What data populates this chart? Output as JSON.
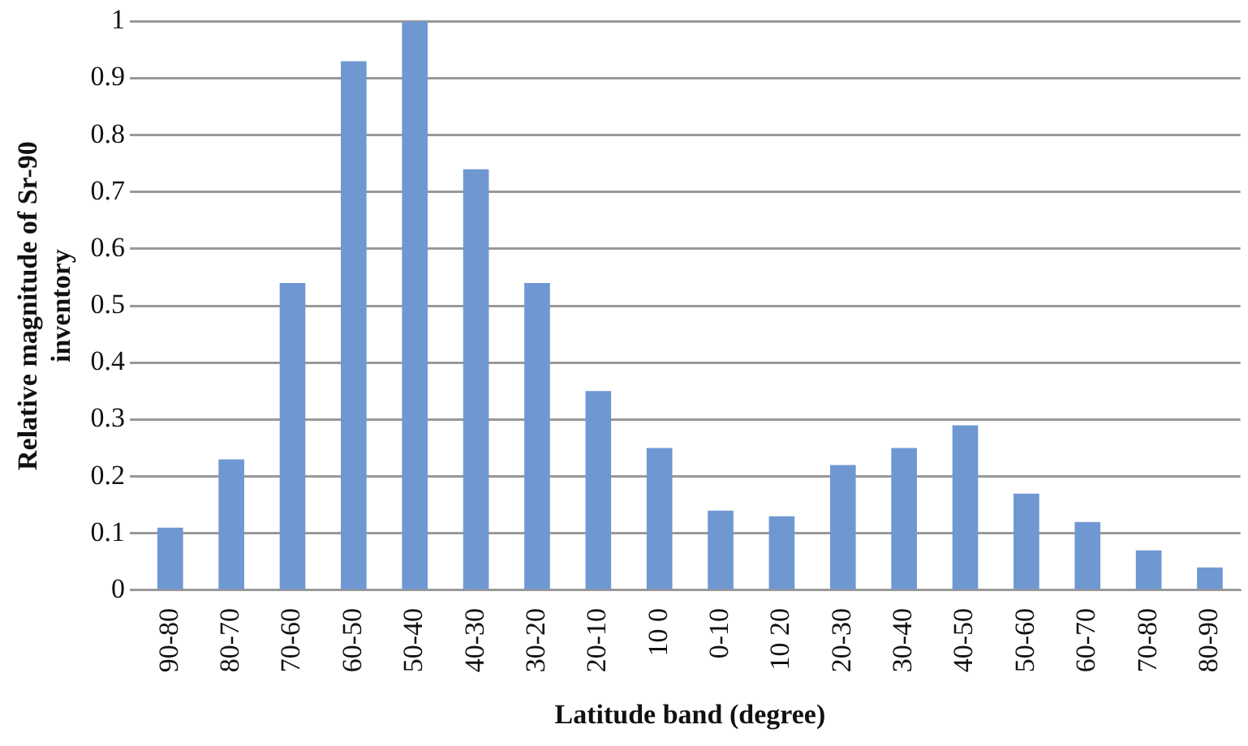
{
  "chart_data": {
    "type": "bar",
    "xlabel": "Latitude band (degree)",
    "ylabel": "Relative magnitude of Sr-90 inventory",
    "categories": [
      "90-80",
      "80-70",
      "70-60",
      "60-50",
      "50-40",
      "40-30",
      "30-20",
      "20-10",
      "10 0",
      "0-10",
      "10 20",
      "20-30",
      "30-40",
      "40-50",
      "50-60",
      "60-70",
      "70-80",
      "80-90"
    ],
    "values": [
      0.11,
      0.23,
      0.54,
      0.93,
      1,
      0.74,
      0.54,
      0.35,
      0.25,
      0.14,
      0.13,
      0.22,
      0.25,
      0.29,
      0.17,
      0.12,
      0.07,
      0.04
    ],
    "color": "#6f98d2",
    "ylim": [
      0,
      1
    ],
    "yticks": [
      0,
      0.1,
      0.2,
      0.3,
      0.4,
      0.5,
      0.6,
      0.7,
      0.8,
      0.9,
      1
    ],
    "grid": "y",
    "legend": false
  }
}
